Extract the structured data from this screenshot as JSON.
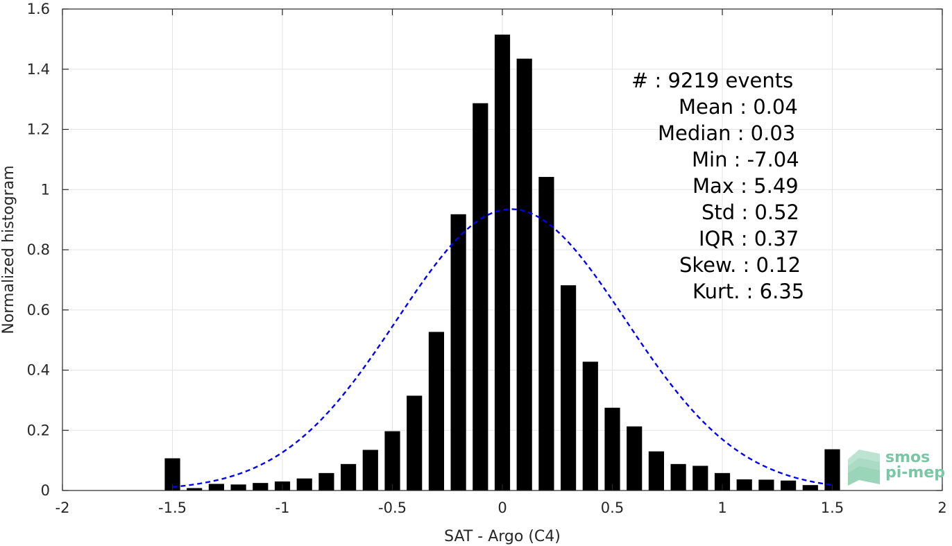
{
  "chart_data": {
    "type": "bar",
    "xlabel": "SAT - Argo (C4)",
    "ylabel": "Normalized histogram",
    "xlim": [
      -2,
      2
    ],
    "ylim": [
      0,
      1.6
    ],
    "xticks": [
      "-2",
      "-1.5",
      "-1",
      "-0.5",
      "0",
      "0.5",
      "1",
      "1.5",
      "2"
    ],
    "yticks": [
      "0",
      "0.2",
      "0.4",
      "0.6",
      "0.8",
      "1",
      "1.2",
      "1.4",
      "1.6"
    ],
    "grid": true,
    "bar_width": 0.07,
    "bar_color": "#000000",
    "x": [
      -1.5,
      -1.4,
      -1.3,
      -1.2,
      -1.1,
      -1.0,
      -0.9,
      -0.8,
      -0.7,
      -0.6,
      -0.5,
      -0.4,
      -0.3,
      -0.2,
      -0.1,
      0.0,
      0.1,
      0.2,
      0.3,
      0.4,
      0.5,
      0.6,
      0.7,
      0.8,
      0.9,
      1.0,
      1.1,
      1.2,
      1.3,
      1.4,
      1.5
    ],
    "values": [
      0.107,
      0.008,
      0.022,
      0.02,
      0.025,
      0.03,
      0.04,
      0.058,
      0.088,
      0.135,
      0.197,
      0.315,
      0.527,
      0.918,
      1.287,
      1.515,
      1.435,
      1.042,
      0.682,
      0.428,
      0.275,
      0.213,
      0.13,
      0.088,
      0.082,
      0.058,
      0.037,
      0.036,
      0.033,
      0.018,
      0.137
    ],
    "fit_curve": {
      "style": "dashed",
      "color": "#0000ff",
      "mean": 0.04,
      "std": 0.52,
      "peak": 0.935,
      "x_range": [
        -1.5,
        1.5
      ]
    },
    "stats": [
      "#  : 9219 events",
      "Mean : 0.04",
      "Median : 0.03",
      "Min : -7.04",
      "Max : 5.49",
      "Std : 0.52",
      "IQR : 0.37",
      "Skew. : 0.12",
      "Kurt. : 6.35"
    ]
  },
  "logo": {
    "line1": "smos",
    "line2": "pi-mep"
  }
}
